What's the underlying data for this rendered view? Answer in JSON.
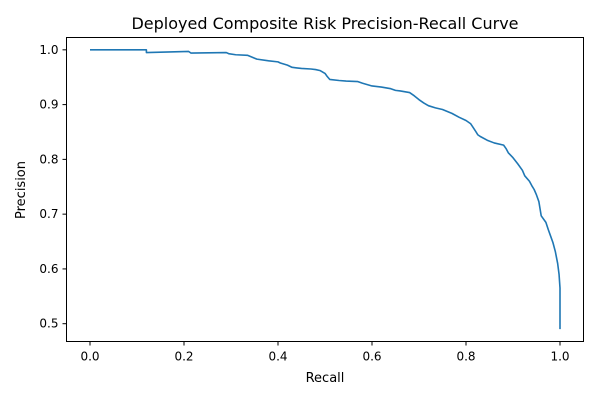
{
  "chart_data": {
    "type": "line",
    "title": "Deployed Composite Risk Precision-Recall Curve",
    "xlabel": "Recall",
    "ylabel": "Precision",
    "xlim": [
      -0.05,
      1.05
    ],
    "ylim": [
      0.4675,
      1.0225
    ],
    "xticks": [
      0.0,
      0.2,
      0.4,
      0.6,
      0.8,
      1.0
    ],
    "xtick_labels": [
      "0.0",
      "0.2",
      "0.4",
      "0.6",
      "0.8",
      "1.0"
    ],
    "yticks": [
      0.5,
      0.6,
      0.7,
      0.8,
      0.9,
      1.0
    ],
    "ytick_labels": [
      "0.5",
      "0.6",
      "0.7",
      "0.8",
      "0.9",
      "1.0"
    ],
    "grid": false,
    "legend": "none",
    "series_color": "#1f77b4",
    "series": [
      {
        "x": [
          0.0,
          0.12,
          0.12,
          0.21,
          0.215,
          0.29,
          0.295,
          0.31,
          0.335,
          0.355,
          0.38,
          0.4,
          0.405,
          0.42,
          0.43,
          0.44,
          0.45,
          0.47,
          0.48,
          0.49,
          0.5,
          0.505,
          0.51,
          0.53,
          0.545,
          0.57,
          0.58,
          0.6,
          0.62,
          0.64,
          0.65,
          0.66,
          0.68,
          0.69,
          0.7,
          0.71,
          0.72,
          0.735,
          0.75,
          0.77,
          0.785,
          0.8,
          0.81,
          0.82,
          0.825,
          0.83,
          0.845,
          0.86,
          0.88,
          0.885,
          0.89,
          0.9,
          0.91,
          0.92,
          0.925,
          0.935,
          0.94,
          0.945,
          0.95,
          0.955,
          0.96,
          0.97,
          0.975,
          0.98,
          0.985,
          0.99,
          0.995,
          0.998,
          1.0,
          1.0
        ],
        "y": [
          1.0,
          1.0,
          0.995,
          0.997,
          0.994,
          0.995,
          0.993,
          0.991,
          0.99,
          0.983,
          0.98,
          0.978,
          0.976,
          0.972,
          0.968,
          0.967,
          0.966,
          0.965,
          0.964,
          0.962,
          0.957,
          0.951,
          0.946,
          0.944,
          0.943,
          0.942,
          0.939,
          0.934,
          0.932,
          0.929,
          0.926,
          0.925,
          0.922,
          0.916,
          0.909,
          0.903,
          0.898,
          0.894,
          0.891,
          0.884,
          0.877,
          0.871,
          0.865,
          0.852,
          0.845,
          0.842,
          0.835,
          0.83,
          0.826,
          0.82,
          0.812,
          0.803,
          0.792,
          0.78,
          0.77,
          0.76,
          0.752,
          0.745,
          0.735,
          0.723,
          0.697,
          0.685,
          0.672,
          0.66,
          0.648,
          0.632,
          0.61,
          0.59,
          0.565,
          0.49
        ]
      }
    ]
  }
}
